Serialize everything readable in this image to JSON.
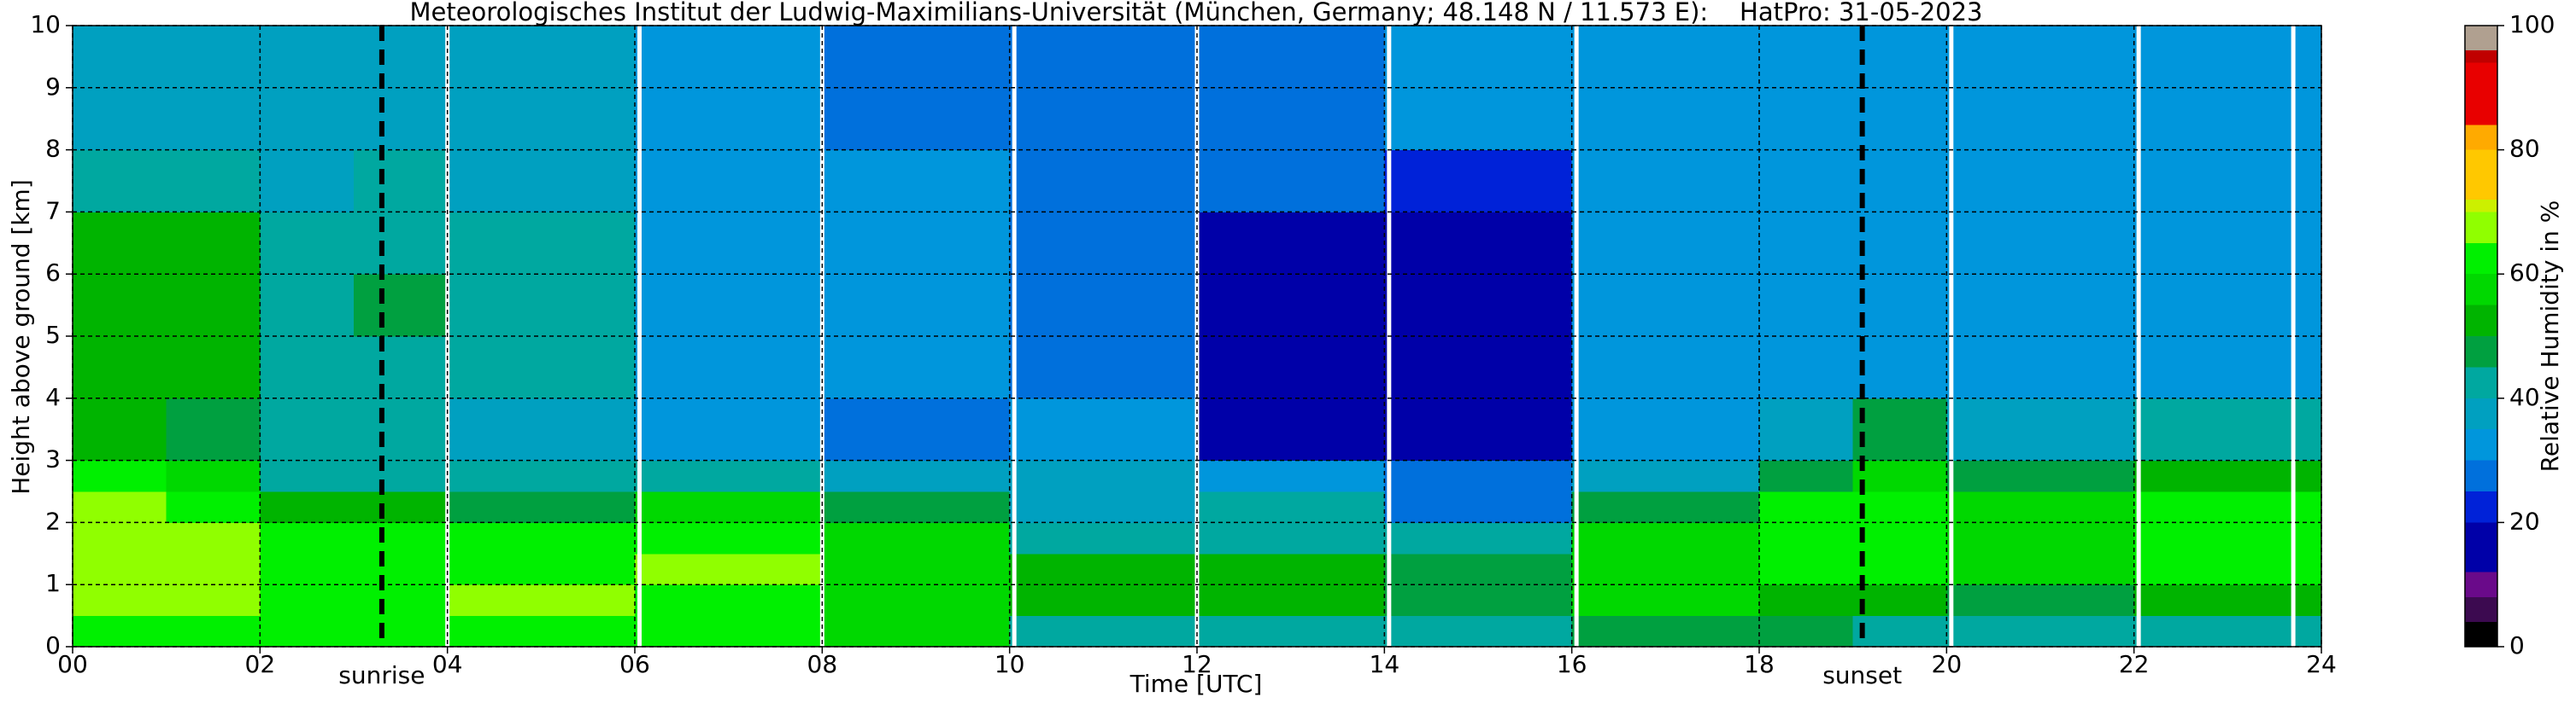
{
  "chart_data": {
    "type": "heatmap",
    "title": "Meteorologisches Institut der Ludwig-Maximilians-Universität (München, Germany; 48.148 N / 11.573 E):    HatPro: 31-05-2023",
    "xlabel": "Time [UTC]",
    "ylabel": "Height above ground [km]",
    "colorbar_label": "Relative Humidity in %",
    "xlim": [
      0,
      24
    ],
    "ylim": [
      0,
      10
    ],
    "clim": [
      0,
      100
    ],
    "xticks": [
      {
        "value": 0,
        "label": "00"
      },
      {
        "value": 2,
        "label": "02"
      },
      {
        "value": 4,
        "label": "04"
      },
      {
        "value": 6,
        "label": "06"
      },
      {
        "value": 8,
        "label": "08"
      },
      10,
      12,
      14,
      16,
      18,
      20,
      22,
      24
    ],
    "yticks": [
      0,
      1,
      2,
      3,
      4,
      5,
      6,
      7,
      8,
      9,
      10
    ],
    "cticks": [
      0,
      20,
      40,
      60,
      80,
      100
    ],
    "grid": true,
    "x_bins": [
      0,
      1,
      2,
      3,
      4,
      5,
      6,
      7,
      8,
      9,
      10,
      11,
      12,
      13,
      14,
      15,
      16,
      17,
      18,
      19,
      20,
      21,
      22,
      23,
      24
    ],
    "y_bins": [
      0,
      0.5,
      1,
      1.5,
      2,
      2.5,
      3,
      4,
      5,
      6,
      7,
      8,
      9,
      10
    ],
    "z": [
      [
        60,
        60,
        60,
        60,
        62,
        62,
        62,
        62,
        55,
        55,
        40,
        40,
        40,
        40,
        42,
        42,
        48,
        48,
        45,
        42,
        40,
        40,
        42,
        42
      ],
      [
        66,
        66,
        63,
        63,
        65,
        65,
        64,
        64,
        58,
        58,
        52,
        52,
        50,
        50,
        48,
        48,
        58,
        58,
        52,
        50,
        48,
        48,
        50,
        50
      ],
      [
        68,
        68,
        63,
        63,
        60,
        60,
        66,
        66,
        58,
        58,
        52,
        52,
        50,
        50,
        48,
        48,
        58,
        58,
        60,
        63,
        58,
        58,
        60,
        60
      ],
      [
        68,
        66,
        63,
        63,
        60,
        60,
        64,
        64,
        58,
        58,
        40,
        40,
        40,
        40,
        40,
        40,
        58,
        58,
        60,
        63,
        58,
        58,
        60,
        60
      ],
      [
        66,
        64,
        50,
        50,
        48,
        48,
        55,
        55,
        45,
        45,
        36,
        36,
        40,
        40,
        25,
        25,
        48,
        48,
        60,
        63,
        58,
        58,
        60,
        60
      ],
      [
        60,
        58,
        40,
        40,
        40,
        40,
        42,
        42,
        35,
        35,
        36,
        36,
        30,
        30,
        25,
        25,
        38,
        38,
        48,
        55,
        45,
        45,
        52,
        52
      ],
      [
        50,
        48,
        40,
        40,
        38,
        38,
        34,
        34,
        28,
        28,
        32,
        32,
        18,
        18,
        18,
        18,
        33,
        33,
        38,
        45,
        38,
        38,
        40,
        40
      ],
      [
        50,
        50,
        42,
        44,
        40,
        40,
        34,
        34,
        30,
        30,
        26,
        26,
        18,
        18,
        18,
        18,
        30,
        30,
        32,
        32,
        32,
        32,
        33,
        33
      ],
      [
        52,
        52,
        42,
        46,
        40,
        40,
        34,
        34,
        30,
        30,
        26,
        26,
        16,
        16,
        16,
        16,
        30,
        30,
        32,
        32,
        32,
        32,
        33,
        33
      ],
      [
        50,
        50,
        42,
        44,
        40,
        40,
        34,
        34,
        30,
        30,
        26,
        26,
        18,
        18,
        18,
        18,
        30,
        30,
        32,
        32,
        32,
        32,
        33,
        33
      ],
      [
        42,
        42,
        38,
        40,
        38,
        38,
        34,
        34,
        30,
        30,
        28,
        28,
        25,
        25,
        24,
        24,
        30,
        30,
        32,
        32,
        32,
        32,
        33,
        33
      ],
      [
        38,
        38,
        38,
        38,
        36,
        36,
        34,
        34,
        28,
        28,
        28,
        28,
        28,
        28,
        30,
        30,
        30,
        30,
        32,
        32,
        32,
        32,
        33,
        33
      ],
      [
        38,
        38,
        38,
        38,
        36,
        36,
        34,
        34,
        26,
        26,
        28,
        28,
        28,
        28,
        30,
        30,
        30,
        30,
        32,
        32,
        32,
        32,
        33,
        33
      ]
    ],
    "colormap": [
      {
        "value": 0,
        "color": "#000000"
      },
      {
        "value": 4,
        "color": "#3c0a50"
      },
      {
        "value": 8,
        "color": "#6a0a8a"
      },
      {
        "value": 12,
        "color": "#0000a8"
      },
      {
        "value": 20,
        "color": "#0022d8"
      },
      {
        "value": 25,
        "color": "#0070dc"
      },
      {
        "value": 30,
        "color": "#0096dc"
      },
      {
        "value": 35,
        "color": "#00a0c0"
      },
      {
        "value": 40,
        "color": "#00a8a0"
      },
      {
        "value": 45,
        "color": "#00a040"
      },
      {
        "value": 50,
        "color": "#00b400"
      },
      {
        "value": 55,
        "color": "#00d800"
      },
      {
        "value": 60,
        "color": "#00f000"
      },
      {
        "value": 65,
        "color": "#90ff00"
      },
      {
        "value": 70,
        "color": "#ccf000"
      },
      {
        "value": 72,
        "color": "#ffc800"
      },
      {
        "value": 80,
        "color": "#ffaa00"
      },
      {
        "value": 84,
        "color": "#e80000"
      },
      {
        "value": 94,
        "color": "#c00000"
      },
      {
        "value": 96,
        "color": "#b0a090"
      }
    ],
    "gap_lines": [
      4.0,
      6.05,
      8.0,
      10.05,
      12.0,
      14.05,
      16.05,
      20.05,
      22.05,
      23.7
    ],
    "annotations": [
      {
        "text": "sunrise",
        "x": 3.3
      },
      {
        "text": "sunset",
        "x": 19.1
      }
    ]
  }
}
